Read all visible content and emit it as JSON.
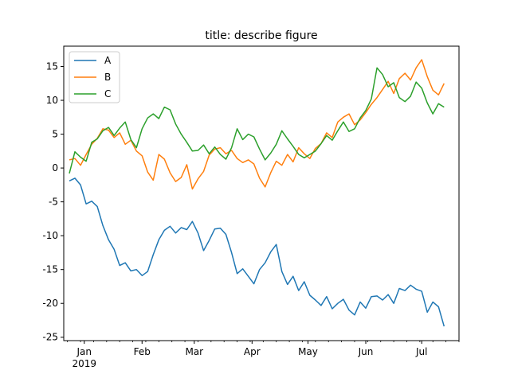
{
  "chart_data": {
    "type": "line",
    "title": "title: describe figure",
    "xlabel": "",
    "ylabel": "",
    "x_axis_type": "date",
    "xlim": [
      "2018-12-21",
      "2019-07-21"
    ],
    "ylim": [
      -25.5,
      18
    ],
    "y_ticks": [
      -25,
      -20,
      -15,
      -10,
      -5,
      0,
      5,
      10,
      15
    ],
    "x_major_ticks": [
      {
        "date": "2019-01-01",
        "label": "Jan",
        "sublabel": "2019"
      },
      {
        "date": "2019-02-01",
        "label": "Feb",
        "sublabel": ""
      },
      {
        "date": "2019-03-01",
        "label": "Mar",
        "sublabel": ""
      },
      {
        "date": "2019-04-01",
        "label": "Apr",
        "sublabel": ""
      },
      {
        "date": "2019-05-01",
        "label": "May",
        "sublabel": ""
      },
      {
        "date": "2019-06-01",
        "label": "Jun",
        "sublabel": ""
      },
      {
        "date": "2019-07-01",
        "label": "Jul",
        "sublabel": ""
      }
    ],
    "x_minor_ticks": [
      "2018-12-23",
      "2018-12-30",
      "2019-01-06",
      "2019-01-13",
      "2019-01-20",
      "2019-01-27",
      "2019-02-03",
      "2019-02-10",
      "2019-02-17",
      "2019-02-24",
      "2019-03-03",
      "2019-03-10",
      "2019-03-17",
      "2019-03-24",
      "2019-03-31",
      "2019-04-07",
      "2019-04-14",
      "2019-04-21",
      "2019-04-28",
      "2019-05-05",
      "2019-05-12",
      "2019-05-19",
      "2019-05-26",
      "2019-06-02",
      "2019-06-09",
      "2019-06-16",
      "2019-06-23",
      "2019-06-30",
      "2019-07-07",
      "2019-07-14",
      "2019-07-21"
    ],
    "legend": "top-left",
    "grid": false,
    "x": [
      "2018-12-24",
      "2018-12-27",
      "2018-12-30",
      "2019-01-02",
      "2019-01-05",
      "2019-01-08",
      "2019-01-11",
      "2019-01-14",
      "2019-01-17",
      "2019-01-20",
      "2019-01-23",
      "2019-01-26",
      "2019-01-29",
      "2019-02-01",
      "2019-02-04",
      "2019-02-07",
      "2019-02-10",
      "2019-02-13",
      "2019-02-16",
      "2019-02-19",
      "2019-02-22",
      "2019-02-25",
      "2019-02-28",
      "2019-03-03",
      "2019-03-06",
      "2019-03-09",
      "2019-03-12",
      "2019-03-15",
      "2019-03-18",
      "2019-03-21",
      "2019-03-24",
      "2019-03-27",
      "2019-03-30",
      "2019-04-02",
      "2019-04-05",
      "2019-04-08",
      "2019-04-11",
      "2019-04-14",
      "2019-04-17",
      "2019-04-20",
      "2019-04-23",
      "2019-04-26",
      "2019-04-29",
      "2019-05-02",
      "2019-05-05",
      "2019-05-08",
      "2019-05-11",
      "2019-05-14",
      "2019-05-17",
      "2019-05-20",
      "2019-05-23",
      "2019-05-26",
      "2019-05-29",
      "2019-06-01",
      "2019-06-04",
      "2019-06-07",
      "2019-06-10",
      "2019-06-13",
      "2019-06-16",
      "2019-06-19",
      "2019-06-22",
      "2019-06-25",
      "2019-06-28",
      "2019-07-01",
      "2019-07-04",
      "2019-07-07",
      "2019-07-10",
      "2019-07-13"
    ],
    "series": [
      {
        "name": "A",
        "color": "#1f77b4",
        "values": [
          -1.9,
          -1.5,
          -2.5,
          -5.3,
          -4.9,
          -5.7,
          -8.5,
          -10.6,
          -12.0,
          -14.4,
          -14.0,
          -15.2,
          -15.0,
          -15.9,
          -15.3,
          -12.8,
          -10.6,
          -9.2,
          -8.6,
          -9.6,
          -8.8,
          -9.1,
          -7.9,
          -9.6,
          -12.2,
          -10.7,
          -9.0,
          -8.9,
          -9.8,
          -12.5,
          -15.6,
          -14.9,
          -16.0,
          -17.1,
          -15.0,
          -14.0,
          -12.4,
          -11.3,
          -15.3,
          -17.2,
          -16.0,
          -18.1,
          -16.8,
          -18.8,
          -19.5,
          -20.3,
          -19.0,
          -20.8,
          -20.0,
          -19.4,
          -21.0,
          -21.7,
          -19.8,
          -20.7,
          -19.0,
          -18.9,
          -19.5,
          -18.7,
          -20.0,
          -17.8,
          -18.1,
          -17.3,
          -17.9,
          -18.2,
          -21.3,
          -19.8,
          -20.5,
          -23.4
        ]
      },
      {
        "name": "B",
        "color": "#ff7f0e",
        "values": [
          1.2,
          1.4,
          0.4,
          2.0,
          3.5,
          4.4,
          5.8,
          5.6,
          4.5,
          5.2,
          3.5,
          4.1,
          2.5,
          1.8,
          -0.6,
          -1.8,
          2.0,
          1.3,
          -0.7,
          -2.0,
          -1.4,
          0.5,
          -3.1,
          -1.6,
          -0.5,
          1.9,
          2.8,
          3.0,
          2.1,
          2.6,
          1.4,
          0.8,
          1.2,
          0.6,
          -1.5,
          -2.8,
          -0.7,
          1.0,
          0.4,
          2.0,
          0.9,
          3.0,
          2.1,
          1.4,
          2.9,
          3.6,
          5.2,
          4.5,
          6.8,
          7.5,
          8.0,
          6.4,
          7.1,
          8.2,
          9.4,
          10.4,
          11.6,
          12.8,
          11.0,
          13.2,
          14.0,
          13.0,
          14.8,
          16.0,
          13.5,
          11.5,
          10.8,
          12.5
        ]
      },
      {
        "name": "C",
        "color": "#2ca02c",
        "values": [
          -0.8,
          2.4,
          1.6,
          1.0,
          3.8,
          4.3,
          5.5,
          6.0,
          4.8,
          5.9,
          6.8,
          4.2,
          3.0,
          5.8,
          7.4,
          8.0,
          7.3,
          9.0,
          8.6,
          6.5,
          5.0,
          3.8,
          2.5,
          2.6,
          3.4,
          2.1,
          3.1,
          2.0,
          1.3,
          3.0,
          5.8,
          4.2,
          5.0,
          4.6,
          2.8,
          1.2,
          2.2,
          3.5,
          5.5,
          4.3,
          3.2,
          2.0,
          1.5,
          2.0,
          2.5,
          3.6,
          4.8,
          4.1,
          5.5,
          6.8,
          5.4,
          5.8,
          7.4,
          8.5,
          10.2,
          14.8,
          13.8,
          12.0,
          12.6,
          10.4,
          9.8,
          10.6,
          12.7,
          11.8,
          9.6,
          8.0,
          9.5,
          9.0
        ]
      }
    ]
  }
}
